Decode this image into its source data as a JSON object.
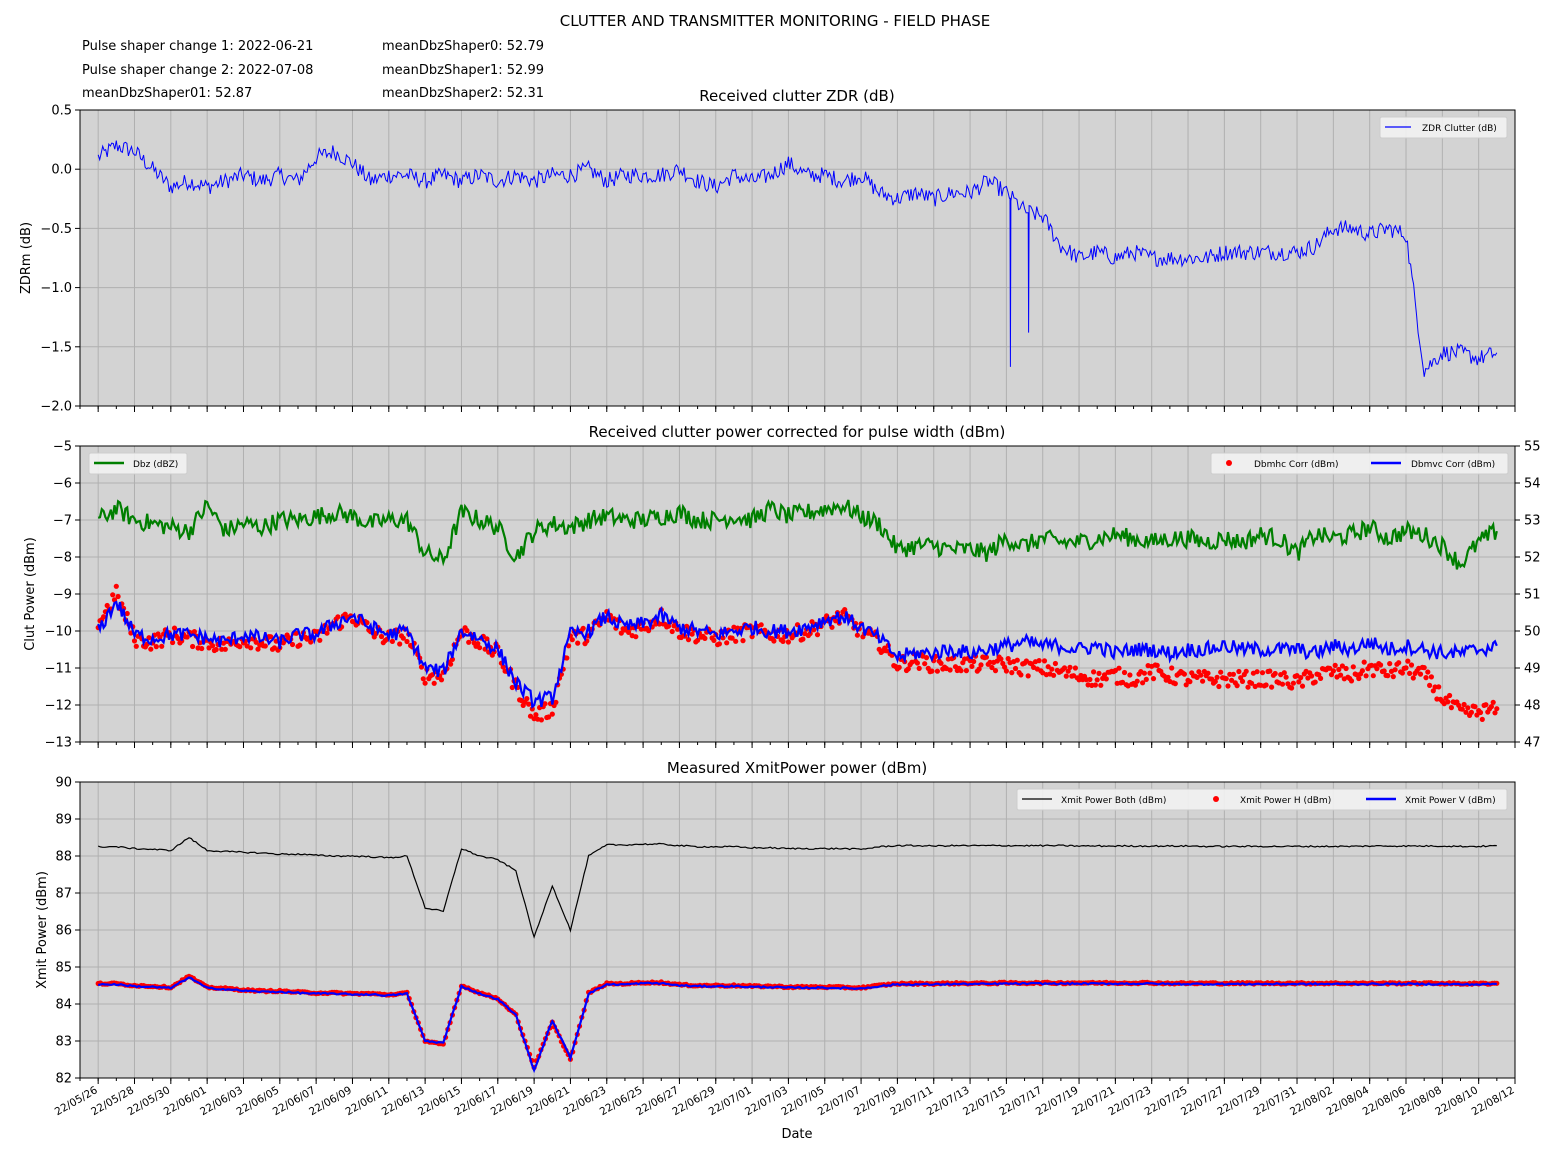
{
  "figure": {
    "suptitle": "CLUTTER AND TRANSMITTER MONITORING - FIELD PHASE",
    "info_lines": [
      "Pulse shaper change 1: 2022-06-21",
      "Pulse shaper change 2: 2022-07-08",
      "meanDbzShaper01: 52.87",
      "meanDbzShaper0: 52.79",
      "meanDbzShaper1: 52.99",
      "meanDbzShaper2: 52.31"
    ],
    "xlabel": "Date",
    "x_tick_labels": [
      "22/05/26",
      "22/05/28",
      "22/05/30",
      "22/06/01",
      "22/06/03",
      "22/06/05",
      "22/06/07",
      "22/06/09",
      "22/06/11",
      "22/06/13",
      "22/06/15",
      "22/06/17",
      "22/06/19",
      "22/06/21",
      "22/06/23",
      "22/06/25",
      "22/06/27",
      "22/06/29",
      "22/07/01",
      "22/07/03",
      "22/07/05",
      "22/07/07",
      "22/07/09",
      "22/07/11",
      "22/07/13",
      "22/07/15",
      "22/07/17",
      "22/07/19",
      "22/07/21",
      "22/07/23",
      "22/07/25",
      "22/07/27",
      "22/07/29",
      "22/07/31",
      "22/08/02",
      "22/08/04",
      "22/08/06",
      "22/08/08",
      "22/08/10",
      "22/08/12"
    ]
  },
  "colors": {
    "plot_background": "#d3d3d3",
    "grid": "#b0b0b0",
    "zdr": "#0000ff",
    "dbz": "#007f00",
    "dbmhc": "#ff0000",
    "dbmvc": "#0000ff",
    "xmit_both": "#000000",
    "xmit_h": "#ff0000",
    "xmit_v": "#0000ff"
  },
  "chart_data": [
    {
      "type": "line",
      "title": "Received clutter ZDR (dB)",
      "xlabel": "",
      "ylabel": "ZDRm (dB)",
      "ylim": [
        -2.0,
        0.5
      ],
      "y_ticks": [
        "0.5",
        "0.0",
        "−0.5",
        "−1.0",
        "−1.5",
        "−2.0"
      ],
      "grid": true,
      "legend_position": "top-right",
      "x_range": [
        "2022-05-25",
        "2022-08-12"
      ],
      "series": [
        {
          "name": "ZDR Clutter (dB)",
          "x": [
            "2022-05-26",
            "2022-05-27",
            "2022-05-28",
            "2022-05-29",
            "2022-05-30",
            "2022-05-31",
            "2022-06-01",
            "2022-06-02",
            "2022-06-03",
            "2022-06-04",
            "2022-06-05",
            "2022-06-06",
            "2022-06-07",
            "2022-06-08",
            "2022-06-09",
            "2022-06-10",
            "2022-06-11",
            "2022-06-12",
            "2022-06-13",
            "2022-06-14",
            "2022-06-15",
            "2022-06-16",
            "2022-06-17",
            "2022-06-18",
            "2022-06-19",
            "2022-06-20",
            "2022-06-21",
            "2022-06-22",
            "2022-06-23",
            "2022-06-24",
            "2022-06-25",
            "2022-06-26",
            "2022-06-27",
            "2022-06-28",
            "2022-06-29",
            "2022-06-30",
            "2022-07-01",
            "2022-07-02",
            "2022-07-03",
            "2022-07-04",
            "2022-07-05",
            "2022-07-06",
            "2022-07-07",
            "2022-07-08",
            "2022-07-09",
            "2022-07-10",
            "2022-07-11",
            "2022-07-12",
            "2022-07-13",
            "2022-07-14",
            "2022-07-15",
            "2022-07-16",
            "2022-07-17",
            "2022-07-18",
            "2022-07-19",
            "2022-07-20",
            "2022-07-21",
            "2022-07-22",
            "2022-07-23",
            "2022-07-24",
            "2022-07-25",
            "2022-07-26",
            "2022-07-27",
            "2022-07-28",
            "2022-07-29",
            "2022-07-30",
            "2022-07-31",
            "2022-08-01",
            "2022-08-02",
            "2022-08-03",
            "2022-08-04",
            "2022-08-05",
            "2022-08-06",
            "2022-08-07",
            "2022-08-08",
            "2022-08-09",
            "2022-08-10",
            "2022-08-11"
          ],
          "values": [
            0.1,
            0.2,
            0.15,
            0.0,
            -0.15,
            -0.1,
            -0.15,
            -0.1,
            -0.05,
            -0.1,
            -0.05,
            -0.1,
            0.1,
            0.15,
            0.05,
            -0.1,
            -0.05,
            -0.05,
            -0.1,
            -0.05,
            -0.1,
            -0.05,
            -0.1,
            -0.05,
            -0.1,
            -0.05,
            -0.05,
            0.0,
            -0.1,
            -0.05,
            -0.05,
            -0.05,
            0.0,
            -0.1,
            -0.15,
            -0.05,
            -0.1,
            -0.05,
            0.05,
            -0.05,
            -0.05,
            -0.1,
            -0.05,
            -0.2,
            -0.25,
            -0.2,
            -0.25,
            -0.2,
            -0.2,
            -0.1,
            -0.2,
            -0.35,
            -0.4,
            -0.65,
            -0.75,
            -0.7,
            -0.75,
            -0.7,
            -0.75,
            -0.75,
            -0.75,
            -0.75,
            -0.7,
            -0.7,
            -0.7,
            -0.7,
            -0.7,
            -0.65,
            -0.5,
            -0.5,
            -0.55,
            -0.5,
            -0.55,
            -1.7,
            -1.55,
            -1.55,
            -1.6,
            -1.55
          ]
        }
      ],
      "annotations": [
        {
          "x": "2022-07-15",
          "y": -1.67,
          "note": "spike"
        },
        {
          "x": "2022-07-16",
          "y": -1.38,
          "note": "spike"
        }
      ]
    },
    {
      "type": "line",
      "title": "Received clutter power corrected for pulse width (dBm)",
      "xlabel": "",
      "ylabel": "Clut Power (dBm)",
      "ylim": [
        -13,
        -5
      ],
      "y_ticks": [
        "−5",
        "−6",
        "−7",
        "−8",
        "−9",
        "−10",
        "−11",
        "−12",
        "−13"
      ],
      "y2lim": [
        47,
        55
      ],
      "y2_ticks": [
        "55",
        "54",
        "53",
        "52",
        "51",
        "50",
        "49",
        "48",
        "47"
      ],
      "grid": true,
      "legend_positions": [
        "top-left",
        "top-right"
      ],
      "x": [
        "2022-05-26",
        "2022-05-27",
        "2022-05-28",
        "2022-05-29",
        "2022-05-30",
        "2022-05-31",
        "2022-06-01",
        "2022-06-02",
        "2022-06-03",
        "2022-06-04",
        "2022-06-05",
        "2022-06-06",
        "2022-06-07",
        "2022-06-08",
        "2022-06-09",
        "2022-06-10",
        "2022-06-11",
        "2022-06-12",
        "2022-06-13",
        "2022-06-14",
        "2022-06-15",
        "2022-06-16",
        "2022-06-17",
        "2022-06-18",
        "2022-06-19",
        "2022-06-20",
        "2022-06-21",
        "2022-06-22",
        "2022-06-23",
        "2022-06-24",
        "2022-06-25",
        "2022-06-26",
        "2022-06-27",
        "2022-06-28",
        "2022-06-29",
        "2022-06-30",
        "2022-07-01",
        "2022-07-02",
        "2022-07-03",
        "2022-07-04",
        "2022-07-05",
        "2022-07-06",
        "2022-07-07",
        "2022-07-08",
        "2022-07-09",
        "2022-07-10",
        "2022-07-11",
        "2022-07-12",
        "2022-07-13",
        "2022-07-14",
        "2022-07-15",
        "2022-07-16",
        "2022-07-17",
        "2022-07-18",
        "2022-07-19",
        "2022-07-20",
        "2022-07-21",
        "2022-07-22",
        "2022-07-23",
        "2022-07-24",
        "2022-07-25",
        "2022-07-26",
        "2022-07-27",
        "2022-07-28",
        "2022-07-29",
        "2022-07-30",
        "2022-07-31",
        "2022-08-01",
        "2022-08-02",
        "2022-08-03",
        "2022-08-04",
        "2022-08-05",
        "2022-08-06",
        "2022-08-07",
        "2022-08-08",
        "2022-08-09",
        "2022-08-10",
        "2022-08-11"
      ],
      "series": [
        {
          "name": "Dbz (dBZ)",
          "axis": "right",
          "values": [
            53.0,
            53.3,
            53.0,
            52.9,
            52.8,
            52.7,
            53.4,
            52.7,
            52.9,
            52.8,
            53.0,
            53.0,
            53.1,
            53.2,
            53.1,
            52.9,
            53.0,
            53.0,
            52.1,
            51.9,
            53.2,
            53.0,
            52.8,
            52.0,
            52.7,
            52.9,
            52.8,
            53.0,
            53.1,
            53.0,
            53.0,
            53.1,
            53.2,
            53.0,
            53.0,
            53.1,
            53.0,
            53.3,
            53.1,
            53.2,
            53.3,
            53.4,
            53.1,
            52.9,
            52.2,
            52.3,
            52.3,
            52.2,
            52.2,
            52.1,
            52.5,
            52.3,
            52.5,
            52.4,
            52.4,
            52.5,
            52.6,
            52.5,
            52.4,
            52.5,
            52.5,
            52.4,
            52.5,
            52.4,
            52.6,
            52.5,
            52.1,
            52.6,
            52.5,
            52.6,
            52.8,
            52.5,
            52.7,
            52.6,
            52.3,
            51.8,
            52.4,
            52.7
          ]
        },
        {
          "name": "Dbmhc Corr (dBm)",
          "axis": "left",
          "values": [
            -9.8,
            -9.0,
            -10.2,
            -10.3,
            -10.1,
            -10.2,
            -10.3,
            -10.4,
            -10.2,
            -10.3,
            -10.4,
            -10.2,
            -10.2,
            -9.8,
            -9.6,
            -10.0,
            -10.2,
            -10.1,
            -11.2,
            -11.2,
            -10.0,
            -10.3,
            -10.6,
            -11.5,
            -12.3,
            -12.1,
            -10.2,
            -10.1,
            -9.6,
            -10.0,
            -9.9,
            -9.6,
            -10.0,
            -10.1,
            -10.2,
            -10.1,
            -10.0,
            -10.1,
            -10.1,
            -10.0,
            -9.8,
            -9.6,
            -10.0,
            -10.3,
            -10.9,
            -10.8,
            -10.9,
            -10.9,
            -10.9,
            -10.9,
            -10.9,
            -11.0,
            -11.0,
            -11.1,
            -11.2,
            -11.3,
            -11.2,
            -11.3,
            -11.1,
            -11.2,
            -11.3,
            -11.3,
            -11.3,
            -11.3,
            -11.3,
            -11.3,
            -11.4,
            -11.2,
            -11.1,
            -11.2,
            -11.0,
            -11.1,
            -11.0,
            -11.2,
            -11.8,
            -12.2,
            -12.2,
            -12.1
          ]
        },
        {
          "name": "Dbmvc Corr (dBm)",
          "axis": "left",
          "values": [
            -10.0,
            -9.2,
            -10.1,
            -10.2,
            -10.1,
            -10.1,
            -10.2,
            -10.3,
            -10.1,
            -10.2,
            -10.3,
            -10.1,
            -10.1,
            -9.8,
            -9.6,
            -9.9,
            -10.1,
            -10.0,
            -11.0,
            -11.1,
            -10.0,
            -10.2,
            -10.5,
            -11.4,
            -11.9,
            -11.8,
            -10.1,
            -10.0,
            -9.6,
            -9.9,
            -9.8,
            -9.6,
            -9.9,
            -10.0,
            -10.1,
            -10.0,
            -9.9,
            -10.0,
            -10.0,
            -9.9,
            -9.7,
            -9.6,
            -9.9,
            -10.2,
            -10.7,
            -10.6,
            -10.6,
            -10.5,
            -10.6,
            -10.5,
            -10.4,
            -10.3,
            -10.4,
            -10.4,
            -10.5,
            -10.4,
            -10.6,
            -10.5,
            -10.5,
            -10.6,
            -10.5,
            -10.5,
            -10.4,
            -10.5,
            -10.5,
            -10.5,
            -10.5,
            -10.6,
            -10.4,
            -10.5,
            -10.3,
            -10.5,
            -10.4,
            -10.5,
            -10.6,
            -10.6,
            -10.5,
            -10.4
          ]
        }
      ]
    },
    {
      "type": "line",
      "title": "Measured XmitPower power (dBm)",
      "xlabel": "Date",
      "ylabel": "Xmit Power (dBm)",
      "ylim": [
        82,
        90
      ],
      "y_ticks": [
        "90",
        "89",
        "88",
        "87",
        "86",
        "85",
        "84",
        "83",
        "82"
      ],
      "grid": true,
      "legend_position": "top-right",
      "x": [
        "2022-05-26",
        "2022-05-27",
        "2022-05-28",
        "2022-05-29",
        "2022-05-30",
        "2022-05-31",
        "2022-06-01",
        "2022-06-02",
        "2022-06-03",
        "2022-06-04",
        "2022-06-05",
        "2022-06-06",
        "2022-06-07",
        "2022-06-08",
        "2022-06-09",
        "2022-06-10",
        "2022-06-11",
        "2022-06-12",
        "2022-06-13",
        "2022-06-14",
        "2022-06-15",
        "2022-06-16",
        "2022-06-17",
        "2022-06-18",
        "2022-06-19",
        "2022-06-20",
        "2022-06-21",
        "2022-06-22",
        "2022-06-23",
        "2022-06-24",
        "2022-06-25",
        "2022-06-26",
        "2022-06-27",
        "2022-06-28",
        "2022-06-29",
        "2022-06-30",
        "2022-07-01",
        "2022-07-02",
        "2022-07-03",
        "2022-07-04",
        "2022-07-05",
        "2022-07-06",
        "2022-07-07",
        "2022-07-08",
        "2022-07-09",
        "2022-07-10",
        "2022-07-11",
        "2022-07-12",
        "2022-07-13",
        "2022-07-14",
        "2022-07-15",
        "2022-07-16",
        "2022-07-17",
        "2022-07-18",
        "2022-07-19",
        "2022-07-20",
        "2022-07-21",
        "2022-07-22",
        "2022-07-23",
        "2022-07-24",
        "2022-07-25",
        "2022-07-26",
        "2022-07-27",
        "2022-07-28",
        "2022-07-29",
        "2022-07-30",
        "2022-07-31",
        "2022-08-01",
        "2022-08-02",
        "2022-08-03",
        "2022-08-04",
        "2022-08-05",
        "2022-08-06",
        "2022-08-07",
        "2022-08-08",
        "2022-08-09",
        "2022-08-10",
        "2022-08-11"
      ],
      "series": [
        {
          "name": "Xmit Power Both (dBm)",
          "values": [
            88.25,
            88.25,
            88.2,
            88.18,
            88.15,
            88.5,
            88.15,
            88.12,
            88.1,
            88.08,
            88.05,
            88.05,
            88.02,
            88.0,
            88.0,
            87.98,
            87.95,
            88.0,
            86.6,
            86.5,
            88.2,
            88.0,
            87.9,
            87.6,
            85.8,
            87.2,
            86.0,
            88.0,
            88.3,
            88.3,
            88.32,
            88.32,
            88.28,
            88.25,
            88.25,
            88.25,
            88.22,
            88.22,
            88.2,
            88.2,
            88.2,
            88.2,
            88.18,
            88.25,
            88.28,
            88.28,
            88.27,
            88.28,
            88.28,
            88.28,
            88.28,
            88.28,
            88.28,
            88.28,
            88.27,
            88.27,
            88.27,
            88.27,
            88.27,
            88.27,
            88.27,
            88.26,
            88.26,
            88.26,
            88.26,
            88.26,
            88.26,
            88.26,
            88.26,
            88.26,
            88.27,
            88.27,
            88.27,
            88.27,
            88.27,
            88.26,
            88.26,
            88.28
          ]
        },
        {
          "name": "Xmit Power H (dBm)",
          "values": [
            84.55,
            84.55,
            84.5,
            84.48,
            84.45,
            84.75,
            84.45,
            84.42,
            84.38,
            84.35,
            84.35,
            84.32,
            84.3,
            84.3,
            84.28,
            84.28,
            84.25,
            84.3,
            83.0,
            82.9,
            84.5,
            84.3,
            84.15,
            83.7,
            82.3,
            83.5,
            82.5,
            84.3,
            84.55,
            84.55,
            84.58,
            84.58,
            84.52,
            84.5,
            84.5,
            84.5,
            84.48,
            84.48,
            84.46,
            84.46,
            84.46,
            84.45,
            84.44,
            84.5,
            84.55,
            84.55,
            84.55,
            84.56,
            84.56,
            84.56,
            84.57,
            84.57,
            84.57,
            84.57,
            84.57,
            84.57,
            84.57,
            84.57,
            84.57,
            84.56,
            84.56,
            84.56,
            84.56,
            84.56,
            84.56,
            84.56,
            84.56,
            84.56,
            84.56,
            84.56,
            84.56,
            84.56,
            84.56,
            84.56,
            84.56,
            84.55,
            84.55,
            84.56
          ]
        },
        {
          "name": "Xmit Power V (dBm)",
          "values": [
            84.53,
            84.53,
            84.48,
            84.46,
            84.43,
            84.72,
            84.43,
            84.4,
            84.36,
            84.33,
            84.33,
            84.3,
            84.28,
            84.28,
            84.26,
            84.26,
            84.23,
            84.28,
            83.0,
            82.95,
            84.48,
            84.28,
            84.13,
            83.7,
            82.2,
            83.55,
            82.55,
            84.28,
            84.53,
            84.53,
            84.56,
            84.56,
            84.5,
            84.48,
            84.48,
            84.48,
            84.46,
            84.46,
            84.44,
            84.44,
            84.44,
            84.43,
            84.42,
            84.48,
            84.53,
            84.53,
            84.53,
            84.54,
            84.54,
            84.54,
            84.55,
            84.55,
            84.55,
            84.55,
            84.55,
            84.55,
            84.55,
            84.55,
            84.55,
            84.54,
            84.54,
            84.54,
            84.54,
            84.54,
            84.54,
            84.54,
            84.54,
            84.54,
            84.54,
            84.54,
            84.54,
            84.54,
            84.54,
            84.54,
            84.54,
            84.53,
            84.53,
            84.54
          ]
        }
      ]
    }
  ]
}
